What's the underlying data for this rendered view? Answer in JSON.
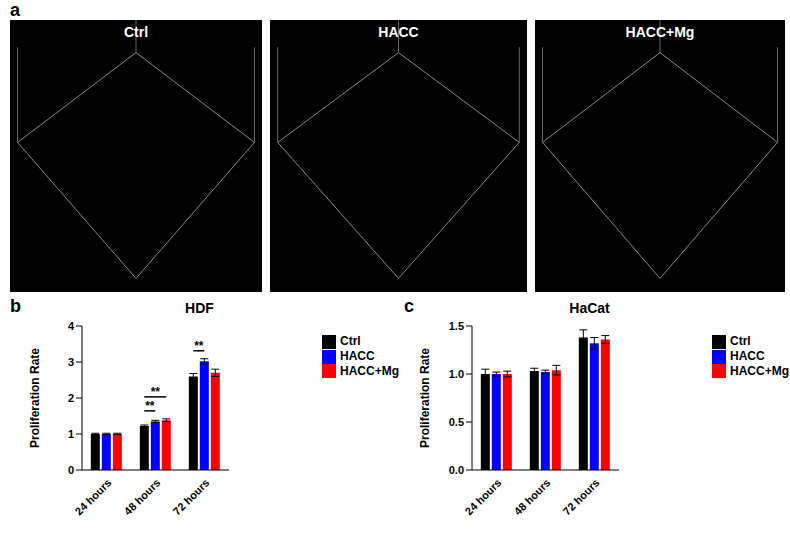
{
  "panel_labels": [
    "a",
    "b",
    "c"
  ],
  "images": {
    "titles": [
      "Ctrl",
      "HACC",
      "HACC+Mg"
    ]
  },
  "chart_data": [
    {
      "type": "bar",
      "title": "HDF",
      "y_label": "Proliferation Rate",
      "categories": [
        "24 hours",
        "48 hours",
        "72 hours"
      ],
      "ylim": [
        0,
        4
      ],
      "yticks": [
        0,
        1,
        2,
        3,
        4
      ],
      "grid": false,
      "legend": "top right",
      "series": [
        {
          "name": "Ctrl",
          "color": "#000000",
          "values": [
            1.0,
            1.22,
            2.6
          ],
          "errors": [
            0.02,
            0.03,
            0.08
          ]
        },
        {
          "name": "HACC",
          "color": "#0000ff",
          "values": [
            1.0,
            1.35,
            3.02
          ],
          "errors": [
            0.02,
            0.03,
            0.07
          ]
        },
        {
          "name": "HACC+Mg",
          "color": "#ff0000",
          "values": [
            1.0,
            1.38,
            2.7
          ],
          "errors": [
            0.02,
            0.04,
            0.1
          ]
        }
      ],
      "annotations": [
        {
          "text": "**",
          "category": "48 hours",
          "from": "Ctrl",
          "to": "HACC"
        },
        {
          "text": "**",
          "category": "48 hours",
          "from": "Ctrl",
          "to": "HACC+Mg"
        },
        {
          "text": "**",
          "category": "72 hours",
          "from": "Ctrl",
          "to": "HACC"
        }
      ]
    },
    {
      "type": "bar",
      "title": "HaCat",
      "y_label": "Proliferation Rate",
      "categories": [
        "24 hours",
        "48 hours",
        "72 hours"
      ],
      "ylim": [
        0,
        1.5
      ],
      "yticks": [
        {
          "value": 0,
          "label": "0.0"
        },
        {
          "value": 0.5,
          "label": "0.5"
        },
        {
          "value": 1,
          "label": "1.0"
        },
        {
          "value": 1.5,
          "label": "1.5"
        }
      ],
      "grid": false,
      "legend": "top right",
      "series": [
        {
          "name": "Ctrl",
          "color": "#000000",
          "values": [
            1.0,
            1.03,
            1.38
          ],
          "errors": [
            0.05,
            0.03,
            0.08
          ]
        },
        {
          "name": "HACC",
          "color": "#0000ff",
          "values": [
            1.0,
            1.02,
            1.32
          ],
          "errors": [
            0.02,
            0.02,
            0.06
          ]
        },
        {
          "name": "HACC+Mg",
          "color": "#ff0000",
          "values": [
            1.0,
            1.04,
            1.36
          ],
          "errors": [
            0.03,
            0.05,
            0.04
          ]
        }
      ]
    }
  ]
}
